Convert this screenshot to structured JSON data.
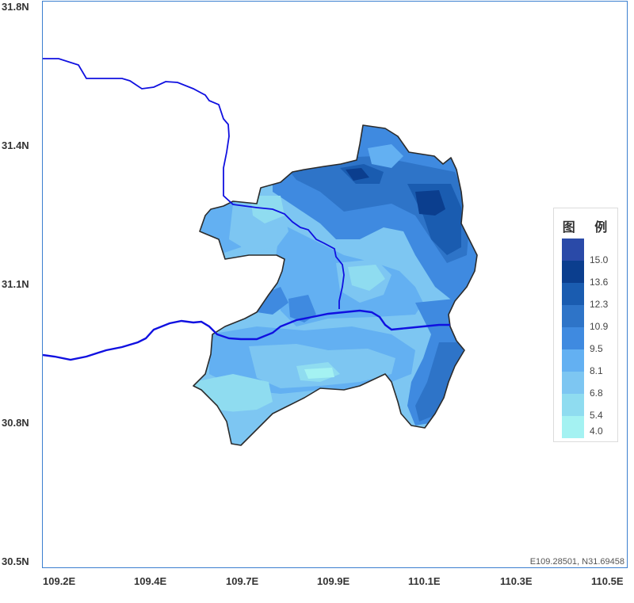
{
  "map": {
    "y_axis_labels": [
      "31.8N",
      "31.4N",
      "31.1N",
      "30.8N",
      "30.5N"
    ],
    "x_axis_labels": [
      "109.2E",
      "109.4E",
      "109.7E",
      "109.9E",
      "110.1E",
      "110.3E",
      "110.5E"
    ],
    "coordinate_readout": "E109.28501, N31.69458"
  },
  "legend": {
    "title": "图 例",
    "values": [
      "15.0",
      "13.6",
      "12.3",
      "10.9",
      "9.5",
      "8.1",
      "6.8",
      "5.4",
      "4.0"
    ],
    "colors": [
      "#2a4aa8",
      "#0b3e8e",
      "#1a5cb0",
      "#2e74c8",
      "#3f8ae0",
      "#63b0f2",
      "#7dc6f2",
      "#8fdcf0",
      "#a4f2f2"
    ]
  },
  "colors": {
    "frame_border": "#3b7fd0",
    "river": "#1010e0",
    "region_outline": "#2b2b2b"
  }
}
